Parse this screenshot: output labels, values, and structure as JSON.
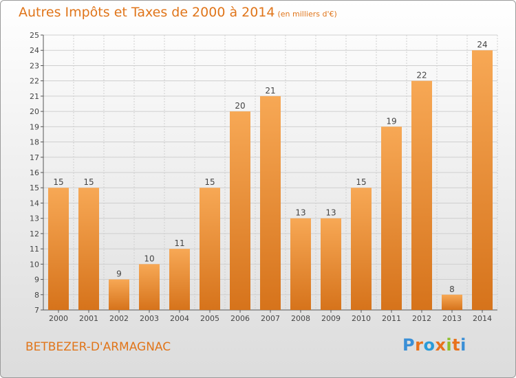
{
  "header": {
    "title": "Autres Impôts et Taxes de 2000 à 2014",
    "unit": "(en milliers d'€)"
  },
  "footer": {
    "commune": "BETBEZER-D'ARMAGNAC",
    "logo_text": "Proxiti"
  },
  "colors": {
    "title": "#e0751a",
    "bar_light": "#f7a855",
    "bar_dark": "#d6731b",
    "logo_letters": [
      "#3a8fd6",
      "#e8721c",
      "#2a9bd8",
      "#e8721c",
      "#8fbf2a",
      "#e8721c",
      "#3a8fd6"
    ]
  },
  "chart_data": {
    "type": "bar",
    "categories": [
      "2000",
      "2001",
      "2002",
      "2003",
      "2004",
      "2005",
      "2006",
      "2007",
      "2008",
      "2009",
      "2010",
      "2011",
      "2012",
      "2013",
      "2014"
    ],
    "values": [
      15,
      15,
      9,
      10,
      11,
      15,
      20,
      21,
      13,
      13,
      15,
      19,
      22,
      8,
      24
    ],
    "title": "Autres Impôts et Taxes de 2000 à 2014",
    "subtitle": "(en milliers d'€)",
    "xlabel": "",
    "ylabel": "",
    "ylim": [
      7,
      25
    ],
    "yticks": [
      7,
      8,
      9,
      10,
      11,
      12,
      13,
      14,
      15,
      16,
      17,
      18,
      19,
      20,
      21,
      22,
      23,
      24,
      25
    ],
    "grid": true,
    "data_labels": true
  }
}
